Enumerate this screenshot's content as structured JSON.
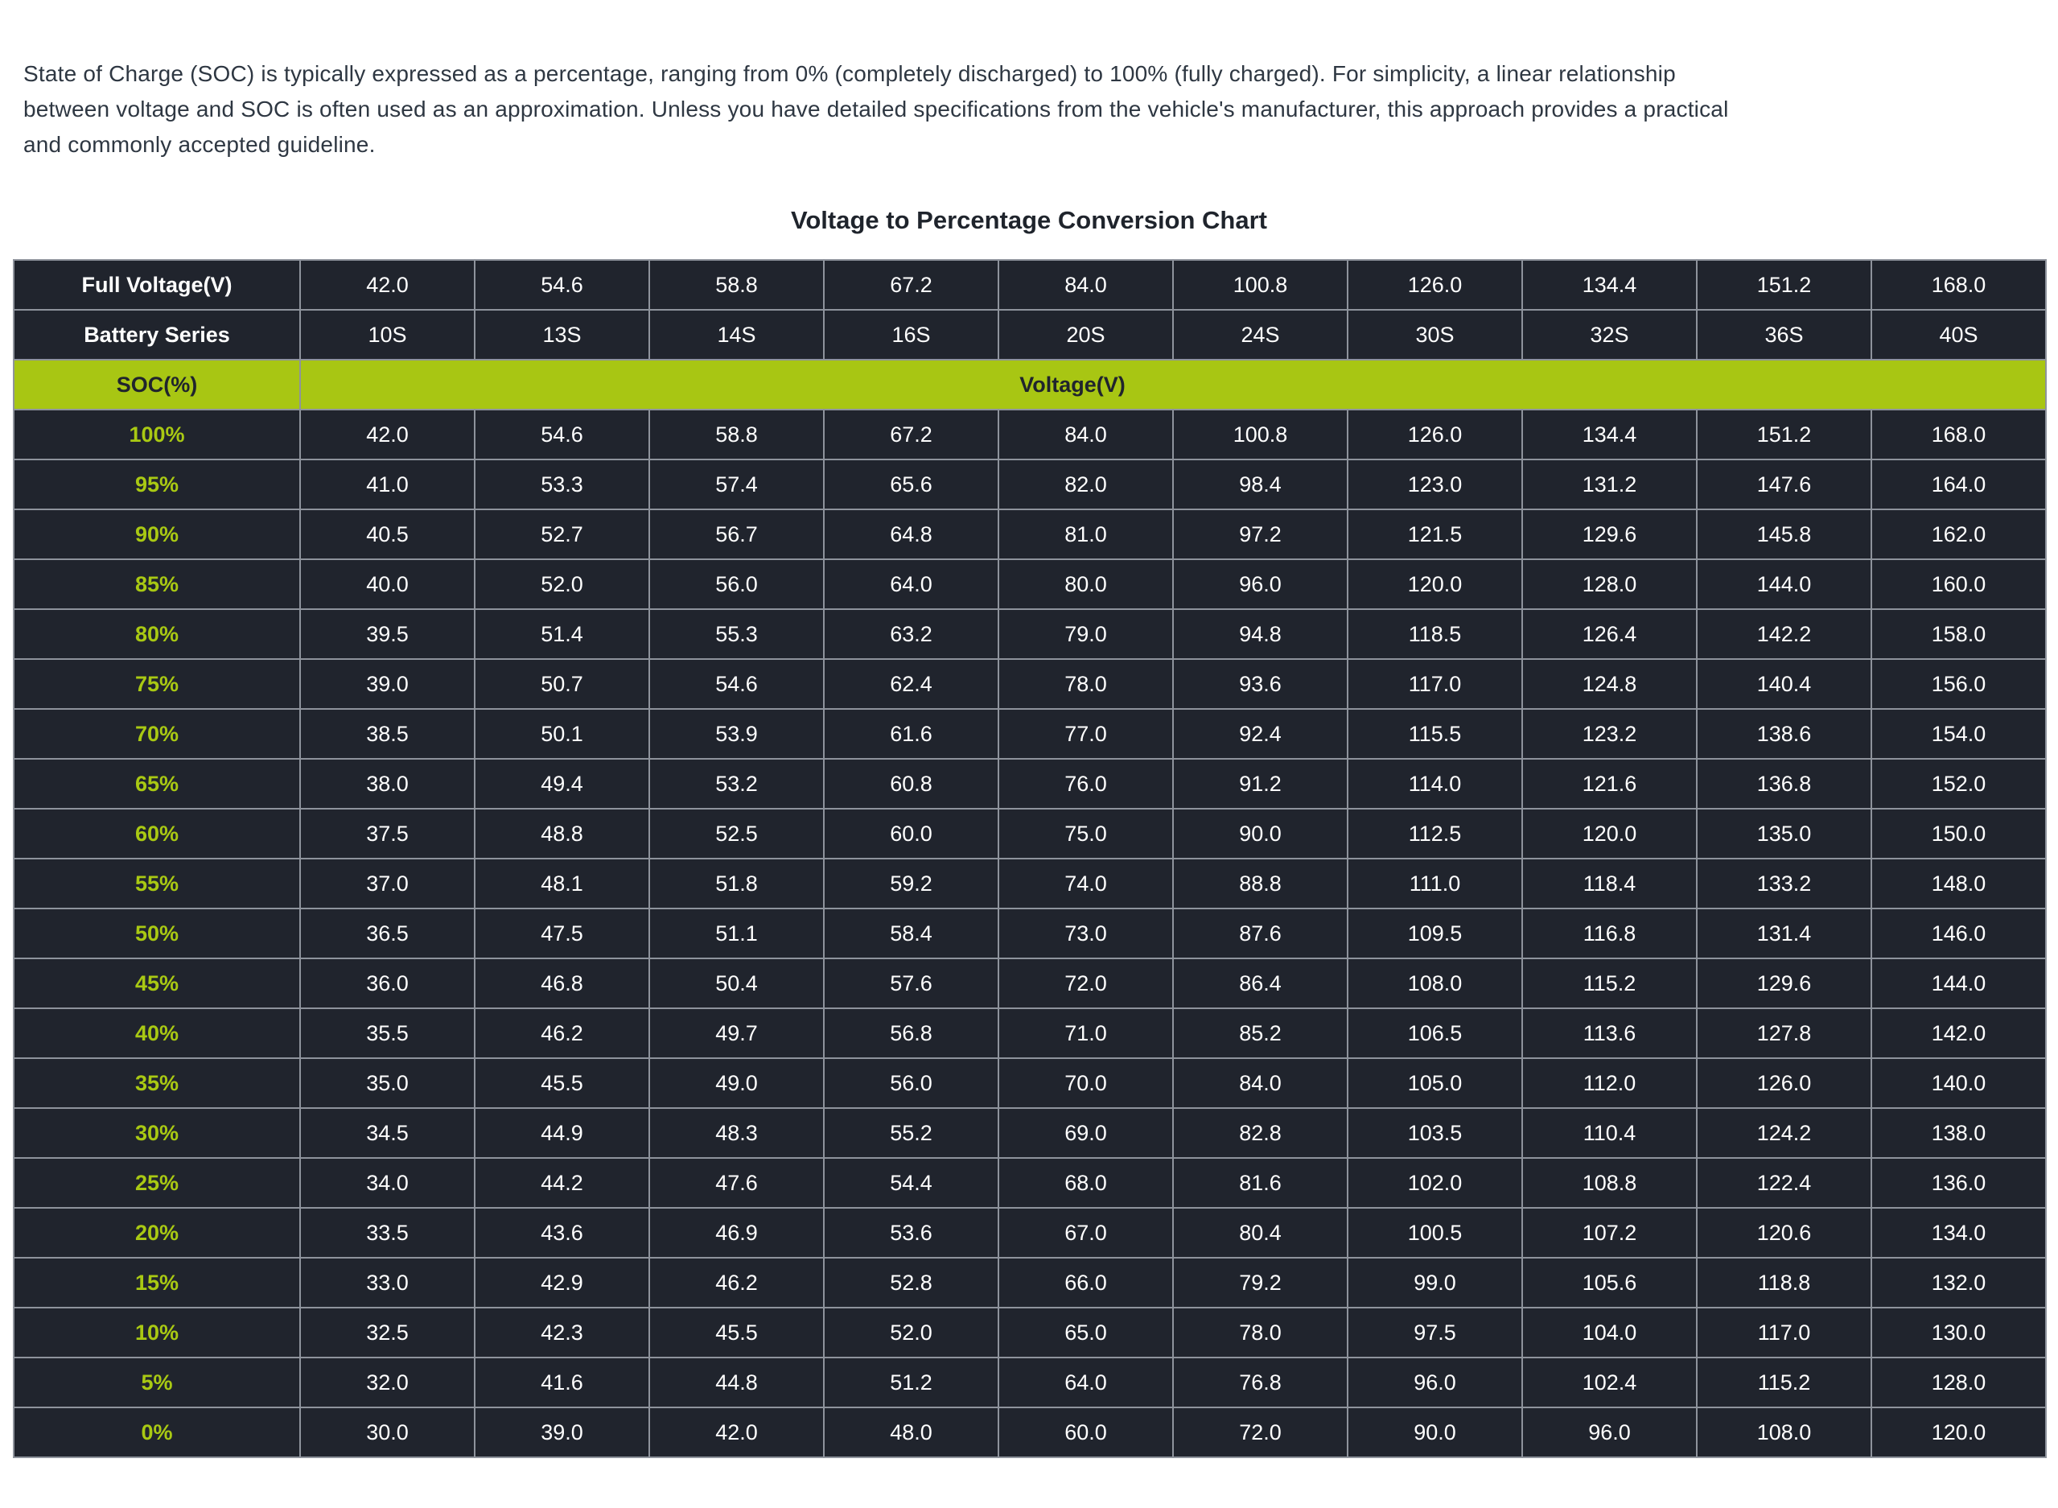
{
  "intro": {
    "text": "State of Charge (SOC) is typically expressed as a percentage, ranging from 0% (completely discharged) to 100% (fully charged). For simplicity, a linear relationship between voltage and SOC is often used as an approximation. Unless you have detailed specifications from the vehicle's manufacturer, this approach provides a practical and commonly accepted guideline.",
    "lines": [
      "State of Charge (SOC) is typically expressed as a percentage, ranging from 0% (completely discharged) to 100% (fully charged). For simplicity, a linear relationship",
      "between voltage and SOC is often used as an approximation. Unless you have detailed specifications from the vehicle's manufacturer, this approach provides a practical",
      "and commonly accepted guideline."
    ]
  },
  "table": {
    "title": "Voltage to Percentage Conversion Chart",
    "full_voltage": {
      "label": "Full Voltage(V)",
      "values": [
        "42.0",
        "54.6",
        "58.8",
        "67.2",
        "84.0",
        "100.8",
        "126.0",
        "134.4",
        "151.2",
        "168.0"
      ]
    },
    "battery_series": {
      "label": "Battery Series",
      "values": [
        "10S",
        "13S",
        "14S",
        "16S",
        "20S",
        "24S",
        "30S",
        "32S",
        "36S",
        "40S"
      ]
    },
    "soc_header": {
      "label": "SOC(%)",
      "merged_label": "Voltage(V)"
    },
    "rows": [
      {
        "soc": "100%",
        "values": [
          "42.0",
          "54.6",
          "58.8",
          "67.2",
          "84.0",
          "100.8",
          "126.0",
          "134.4",
          "151.2",
          "168.0"
        ]
      },
      {
        "soc": "95%",
        "values": [
          "41.0",
          "53.3",
          "57.4",
          "65.6",
          "82.0",
          "98.4",
          "123.0",
          "131.2",
          "147.6",
          "164.0"
        ]
      },
      {
        "soc": "90%",
        "values": [
          "40.5",
          "52.7",
          "56.7",
          "64.8",
          "81.0",
          "97.2",
          "121.5",
          "129.6",
          "145.8",
          "162.0"
        ]
      },
      {
        "soc": "85%",
        "values": [
          "40.0",
          "52.0",
          "56.0",
          "64.0",
          "80.0",
          "96.0",
          "120.0",
          "128.0",
          "144.0",
          "160.0"
        ]
      },
      {
        "soc": "80%",
        "values": [
          "39.5",
          "51.4",
          "55.3",
          "63.2",
          "79.0",
          "94.8",
          "118.5",
          "126.4",
          "142.2",
          "158.0"
        ]
      },
      {
        "soc": "75%",
        "values": [
          "39.0",
          "50.7",
          "54.6",
          "62.4",
          "78.0",
          "93.6",
          "117.0",
          "124.8",
          "140.4",
          "156.0"
        ]
      },
      {
        "soc": "70%",
        "values": [
          "38.5",
          "50.1",
          "53.9",
          "61.6",
          "77.0",
          "92.4",
          "115.5",
          "123.2",
          "138.6",
          "154.0"
        ]
      },
      {
        "soc": "65%",
        "values": [
          "38.0",
          "49.4",
          "53.2",
          "60.8",
          "76.0",
          "91.2",
          "114.0",
          "121.6",
          "136.8",
          "152.0"
        ]
      },
      {
        "soc": "60%",
        "values": [
          "37.5",
          "48.8",
          "52.5",
          "60.0",
          "75.0",
          "90.0",
          "112.5",
          "120.0",
          "135.0",
          "150.0"
        ]
      },
      {
        "soc": "55%",
        "values": [
          "37.0",
          "48.1",
          "51.8",
          "59.2",
          "74.0",
          "88.8",
          "111.0",
          "118.4",
          "133.2",
          "148.0"
        ]
      },
      {
        "soc": "50%",
        "values": [
          "36.5",
          "47.5",
          "51.1",
          "58.4",
          "73.0",
          "87.6",
          "109.5",
          "116.8",
          "131.4",
          "146.0"
        ]
      },
      {
        "soc": "45%",
        "values": [
          "36.0",
          "46.8",
          "50.4",
          "57.6",
          "72.0",
          "86.4",
          "108.0",
          "115.2",
          "129.6",
          "144.0"
        ]
      },
      {
        "soc": "40%",
        "values": [
          "35.5",
          "46.2",
          "49.7",
          "56.8",
          "71.0",
          "85.2",
          "106.5",
          "113.6",
          "127.8",
          "142.0"
        ]
      },
      {
        "soc": "35%",
        "values": [
          "35.0",
          "45.5",
          "49.0",
          "56.0",
          "70.0",
          "84.0",
          "105.0",
          "112.0",
          "126.0",
          "140.0"
        ]
      },
      {
        "soc": "30%",
        "values": [
          "34.5",
          "44.9",
          "48.3",
          "55.2",
          "69.0",
          "82.8",
          "103.5",
          "110.4",
          "124.2",
          "138.0"
        ]
      },
      {
        "soc": "25%",
        "values": [
          "34.0",
          "44.2",
          "47.6",
          "54.4",
          "68.0",
          "81.6",
          "102.0",
          "108.8",
          "122.4",
          "136.0"
        ]
      },
      {
        "soc": "20%",
        "values": [
          "33.5",
          "43.6",
          "46.9",
          "53.6",
          "67.0",
          "80.4",
          "100.5",
          "107.2",
          "120.6",
          "134.0"
        ]
      },
      {
        "soc": "15%",
        "values": [
          "33.0",
          "42.9",
          "46.2",
          "52.8",
          "66.0",
          "79.2",
          "99.0",
          "105.6",
          "118.8",
          "132.0"
        ]
      },
      {
        "soc": "10%",
        "values": [
          "32.5",
          "42.3",
          "45.5",
          "52.0",
          "65.0",
          "78.0",
          "97.5",
          "104.0",
          "117.0",
          "130.0"
        ]
      },
      {
        "soc": "5%",
        "values": [
          "32.0",
          "41.6",
          "44.8",
          "51.2",
          "64.0",
          "76.8",
          "96.0",
          "102.4",
          "115.2",
          "128.0"
        ]
      },
      {
        "soc": "0%",
        "values": [
          "30.0",
          "39.0",
          "42.0",
          "48.0",
          "60.0",
          "72.0",
          "90.0",
          "96.0",
          "108.0",
          "120.0"
        ]
      }
    ]
  },
  "colors": {
    "accent_green": "#a8c613",
    "cell_background": "#20242d",
    "border_gray": "#8e939c",
    "value_text": "#ffffff",
    "intro_text": "#2e3742"
  },
  "chart_data": {
    "type": "table",
    "title": "Voltage to Percentage Conversion Chart",
    "columns": [
      "SOC(%)",
      "10S",
      "13S",
      "14S",
      "16S",
      "20S",
      "24S",
      "30S",
      "32S",
      "36S",
      "40S"
    ],
    "full_voltage_v": [
      42.0,
      54.6,
      58.8,
      67.2,
      84.0,
      100.8,
      126.0,
      134.4,
      151.2,
      168.0
    ],
    "soc_percent": [
      100,
      95,
      90,
      85,
      80,
      75,
      70,
      65,
      60,
      55,
      50,
      45,
      40,
      35,
      30,
      25,
      20,
      15,
      10,
      5,
      0
    ],
    "voltages_by_soc": [
      [
        42.0,
        54.6,
        58.8,
        67.2,
        84.0,
        100.8,
        126.0,
        134.4,
        151.2,
        168.0
      ],
      [
        41.0,
        53.3,
        57.4,
        65.6,
        82.0,
        98.4,
        123.0,
        131.2,
        147.6,
        164.0
      ],
      [
        40.5,
        52.7,
        56.7,
        64.8,
        81.0,
        97.2,
        121.5,
        129.6,
        145.8,
        162.0
      ],
      [
        40.0,
        52.0,
        56.0,
        64.0,
        80.0,
        96.0,
        120.0,
        128.0,
        144.0,
        160.0
      ],
      [
        39.5,
        51.4,
        55.3,
        63.2,
        79.0,
        94.8,
        118.5,
        126.4,
        142.2,
        158.0
      ],
      [
        39.0,
        50.7,
        54.6,
        62.4,
        78.0,
        93.6,
        117.0,
        124.8,
        140.4,
        156.0
      ],
      [
        38.5,
        50.1,
        53.9,
        61.6,
        77.0,
        92.4,
        115.5,
        123.2,
        138.6,
        154.0
      ],
      [
        38.0,
        49.4,
        53.2,
        60.8,
        76.0,
        91.2,
        114.0,
        121.6,
        136.8,
        152.0
      ],
      [
        37.5,
        48.8,
        52.5,
        60.0,
        75.0,
        90.0,
        112.5,
        120.0,
        135.0,
        150.0
      ],
      [
        37.0,
        48.1,
        51.8,
        59.2,
        74.0,
        88.8,
        111.0,
        118.4,
        133.2,
        148.0
      ],
      [
        36.5,
        47.5,
        51.1,
        58.4,
        73.0,
        87.6,
        109.5,
        116.8,
        131.4,
        146.0
      ],
      [
        36.0,
        46.8,
        50.4,
        57.6,
        72.0,
        86.4,
        108.0,
        115.2,
        129.6,
        144.0
      ],
      [
        35.5,
        46.2,
        49.7,
        56.8,
        71.0,
        85.2,
        106.5,
        113.6,
        127.8,
        142.0
      ],
      [
        35.0,
        45.5,
        49.0,
        56.0,
        70.0,
        84.0,
        105.0,
        112.0,
        126.0,
        140.0
      ],
      [
        34.5,
        44.9,
        48.3,
        55.2,
        69.0,
        82.8,
        103.5,
        110.4,
        124.2,
        138.0
      ],
      [
        34.0,
        44.2,
        47.6,
        54.4,
        68.0,
        81.6,
        102.0,
        108.8,
        122.4,
        136.0
      ],
      [
        33.5,
        43.6,
        46.9,
        53.6,
        67.0,
        80.4,
        100.5,
        107.2,
        120.6,
        134.0
      ],
      [
        33.0,
        42.9,
        46.2,
        52.8,
        66.0,
        79.2,
        99.0,
        105.6,
        118.8,
        132.0
      ],
      [
        32.5,
        42.3,
        45.5,
        52.0,
        65.0,
        78.0,
        97.5,
        104.0,
        117.0,
        130.0
      ],
      [
        32.0,
        41.6,
        44.8,
        51.2,
        64.0,
        76.8,
        96.0,
        102.4,
        115.2,
        128.0
      ],
      [
        30.0,
        39.0,
        42.0,
        48.0,
        60.0,
        72.0,
        90.0,
        96.0,
        108.0,
        120.0
      ]
    ]
  }
}
